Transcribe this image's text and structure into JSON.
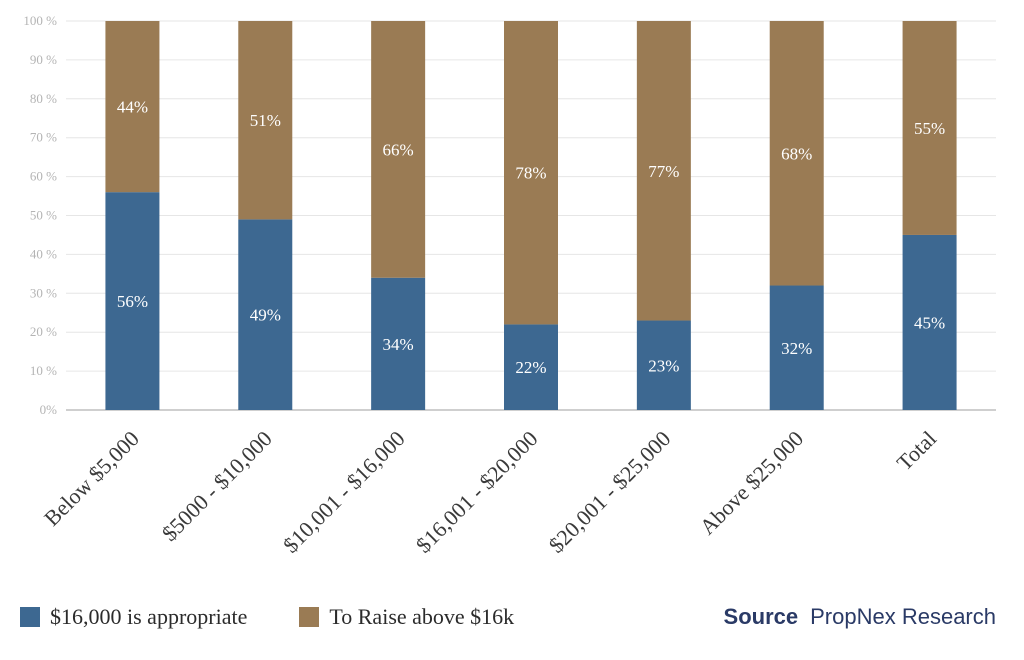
{
  "colors": {
    "appropriate": "#3d6891",
    "raise": "#9a7b54",
    "grid": "#e6e6e6",
    "axis": "#cfcfcf"
  },
  "source": {
    "label": "Source",
    "text": "PropNex Research"
  },
  "chart_data": {
    "type": "bar",
    "stacked": true,
    "categories": [
      "Below $5,000",
      "$5000 - $10,000",
      "$10,001 - $16,000",
      "$16,001 - $20,000",
      "$20,001 - $25,000",
      "Above $25,000",
      "Total"
    ],
    "series": [
      {
        "name": "$16,000 is appropriate",
        "values": [
          56,
          49,
          34,
          22,
          23,
          32,
          45
        ],
        "labels": [
          "56%",
          "49%",
          "34%",
          "22%",
          "23%",
          "32%",
          "45%"
        ]
      },
      {
        "name": "To Raise above $16k",
        "values": [
          44,
          51,
          66,
          78,
          77,
          68,
          55
        ],
        "labels": [
          "44%",
          "51%",
          "66%",
          "78%",
          "77%",
          "68%",
          "55%"
        ]
      }
    ],
    "yticks": [
      "0%",
      "10 %",
      "20 %",
      "30 %",
      "40 %",
      "50 %",
      "60 %",
      "70 %",
      "80 %",
      "90 %",
      "100 %"
    ],
    "ylim": [
      0,
      100
    ],
    "grid": true,
    "legend": "bottom-left"
  }
}
